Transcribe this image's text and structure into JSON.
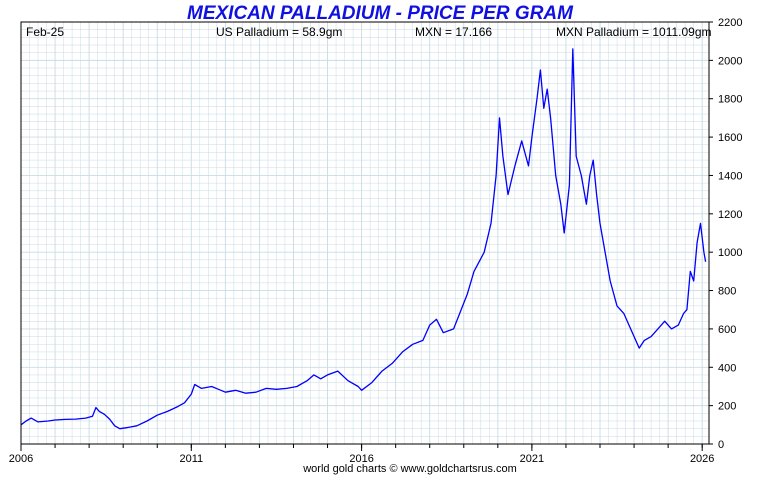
{
  "colors": {
    "title": "#1010e0",
    "series": "#0000ff",
    "grid": "#c8dbe6",
    "axis": "#000000",
    "text": "#000000",
    "background": "#ffffff"
  },
  "chart_data": {
    "type": "line",
    "title": "MEXICAN PALLADIUM - PRICE PER GRAM",
    "info": {
      "date": "Feb-25",
      "us_price": "US Palladium = 58.9gm",
      "fx": "MXN = 17.166",
      "local_price": "MXN Palladium = 1011.09gm"
    },
    "xlabel": "",
    "ylabel": "",
    "xlim": [
      2006.0,
      2026.2
    ],
    "ylim": [
      0,
      2200
    ],
    "x_ticks": [
      {
        "value": 2006,
        "label": "2006"
      },
      {
        "value": 2011,
        "label": "2011"
      },
      {
        "value": 2016,
        "label": "2016"
      },
      {
        "value": 2021,
        "label": "2021"
      },
      {
        "value": 2026,
        "label": "2026"
      }
    ],
    "y_ticks": [
      0,
      200,
      400,
      600,
      800,
      1000,
      1200,
      1400,
      1600,
      1800,
      2000,
      2200
    ],
    "footer": "world gold charts © www.goldchartsrus.com",
    "series": [
      {
        "name": "MXN Palladium per gram",
        "points": [
          [
            2006.0,
            100
          ],
          [
            2006.15,
            120
          ],
          [
            2006.3,
            135
          ],
          [
            2006.5,
            115
          ],
          [
            2006.8,
            120
          ],
          [
            2007.0,
            125
          ],
          [
            2007.3,
            128
          ],
          [
            2007.6,
            130
          ],
          [
            2007.9,
            135
          ],
          [
            2008.1,
            145
          ],
          [
            2008.2,
            190
          ],
          [
            2008.3,
            170
          ],
          [
            2008.45,
            155
          ],
          [
            2008.6,
            130
          ],
          [
            2008.75,
            95
          ],
          [
            2008.9,
            80
          ],
          [
            2009.1,
            85
          ],
          [
            2009.4,
            95
          ],
          [
            2009.7,
            120
          ],
          [
            2010.0,
            150
          ],
          [
            2010.3,
            170
          ],
          [
            2010.6,
            195
          ],
          [
            2010.8,
            215
          ],
          [
            2011.0,
            260
          ],
          [
            2011.1,
            310
          ],
          [
            2011.3,
            290
          ],
          [
            2011.6,
            300
          ],
          [
            2011.8,
            285
          ],
          [
            2012.0,
            270
          ],
          [
            2012.3,
            280
          ],
          [
            2012.6,
            265
          ],
          [
            2012.9,
            270
          ],
          [
            2013.2,
            290
          ],
          [
            2013.5,
            285
          ],
          [
            2013.8,
            290
          ],
          [
            2014.1,
            300
          ],
          [
            2014.4,
            330
          ],
          [
            2014.6,
            360
          ],
          [
            2014.8,
            340
          ],
          [
            2015.0,
            360
          ],
          [
            2015.3,
            380
          ],
          [
            2015.6,
            330
          ],
          [
            2015.9,
            300
          ],
          [
            2016.0,
            280
          ],
          [
            2016.3,
            320
          ],
          [
            2016.6,
            380
          ],
          [
            2016.9,
            420
          ],
          [
            2017.2,
            480
          ],
          [
            2017.5,
            520
          ],
          [
            2017.8,
            540
          ],
          [
            2018.0,
            620
          ],
          [
            2018.2,
            650
          ],
          [
            2018.4,
            580
          ],
          [
            2018.7,
            600
          ],
          [
            2018.9,
            690
          ],
          [
            2019.1,
            780
          ],
          [
            2019.3,
            900
          ],
          [
            2019.6,
            1000
          ],
          [
            2019.8,
            1150
          ],
          [
            2019.95,
            1400
          ],
          [
            2020.05,
            1700
          ],
          [
            2020.15,
            1500
          ],
          [
            2020.3,
            1300
          ],
          [
            2020.5,
            1450
          ],
          [
            2020.7,
            1580
          ],
          [
            2020.9,
            1450
          ],
          [
            2021.0,
            1600
          ],
          [
            2021.15,
            1800
          ],
          [
            2021.25,
            1950
          ],
          [
            2021.35,
            1750
          ],
          [
            2021.45,
            1850
          ],
          [
            2021.55,
            1700
          ],
          [
            2021.7,
            1400
          ],
          [
            2021.85,
            1250
          ],
          [
            2021.95,
            1100
          ],
          [
            2022.1,
            1350
          ],
          [
            2022.2,
            2060
          ],
          [
            2022.3,
            1500
          ],
          [
            2022.45,
            1400
          ],
          [
            2022.6,
            1250
          ],
          [
            2022.7,
            1400
          ],
          [
            2022.8,
            1480
          ],
          [
            2022.9,
            1300
          ],
          [
            2023.0,
            1150
          ],
          [
            2023.15,
            1000
          ],
          [
            2023.3,
            850
          ],
          [
            2023.5,
            720
          ],
          [
            2023.7,
            680
          ],
          [
            2023.85,
            620
          ],
          [
            2024.0,
            560
          ],
          [
            2024.15,
            500
          ],
          [
            2024.3,
            540
          ],
          [
            2024.5,
            560
          ],
          [
            2024.7,
            600
          ],
          [
            2024.9,
            640
          ],
          [
            2025.1,
            600
          ],
          [
            2025.3,
            620
          ],
          [
            2025.45,
            680
          ],
          [
            2025.55,
            700
          ],
          [
            2025.65,
            900
          ],
          [
            2025.75,
            850
          ],
          [
            2025.85,
            1050
          ],
          [
            2025.95,
            1150
          ],
          [
            2026.05,
            1000
          ],
          [
            2026.1,
            950
          ]
        ]
      }
    ]
  }
}
